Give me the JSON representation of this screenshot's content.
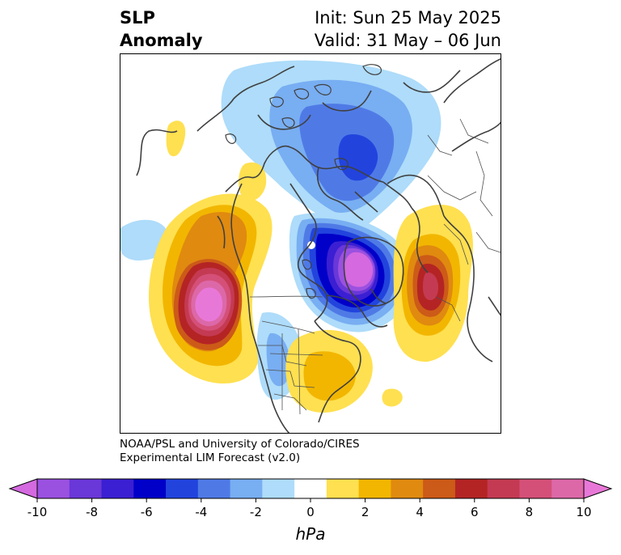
{
  "header": {
    "title_line1": "SLP",
    "title_line2": "Anomaly",
    "init_text": "Init: Sun 25 May 2025",
    "valid_text": "Valid: 31 May – 06 Jun"
  },
  "credit": {
    "line1": "NOAA/PSL and University of Colorado/CIRES",
    "line2": "Experimental LIM Forecast (v2.0)"
  },
  "colorbar": {
    "unit_label": "hPa",
    "ticks": [
      "-10",
      "-8",
      "-6",
      "-4",
      "-2",
      "0",
      "2",
      "4",
      "6",
      "8",
      "10"
    ],
    "colors": [
      "#d469e0",
      "#9b51e0",
      "#6a37d8",
      "#3b1fd2",
      "#0000c8",
      "#2244dd",
      "#4f7ae6",
      "#78aef2",
      "#aedcfa",
      "#ffffff",
      "#ffe050",
      "#f2b600",
      "#e08a10",
      "#cc5a18",
      "#b42424",
      "#c43a52",
      "#d45078",
      "#dc68a8",
      "#e878d8"
    ]
  }
}
